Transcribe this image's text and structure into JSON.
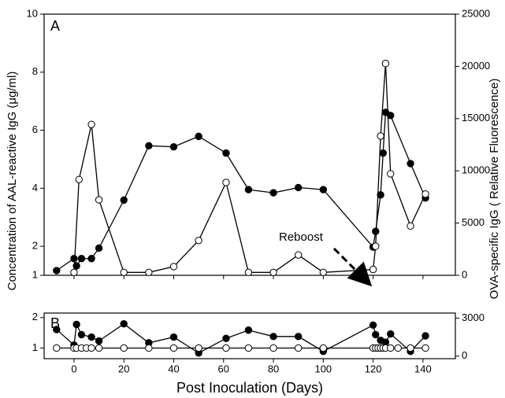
{
  "chart_data": [
    {
      "type": "line",
      "panel_label": "A",
      "ylabel": "Concentration of AAL-reactive IgG (μg/ml)",
      "y2label": "OVA-specific IgG ( Relative Fluorescence)",
      "annotation": "Reboost",
      "xlim": [
        -12,
        153
      ],
      "ylim": [
        1,
        10
      ],
      "yticks": [
        1,
        2,
        4,
        6,
        8,
        10
      ],
      "y2lim": [
        0,
        25000
      ],
      "y2ticks": [
        0,
        5000,
        10000,
        15000,
        20000,
        25000
      ],
      "series": [
        {
          "marker": "open",
          "color": "#000000",
          "axis": "y",
          "x": [
            0,
            2,
            7,
            10,
            20,
            30,
            40,
            50,
            61,
            70,
            80,
            90,
            100,
            120,
            121,
            123,
            125,
            127,
            135,
            141
          ],
          "values": [
            1.1,
            4.3,
            6.2,
            3.6,
            1.1,
            1.1,
            1.3,
            2.2,
            4.2,
            1.1,
            1.1,
            1.7,
            1.1,
            1.2,
            2.0,
            5.8,
            8.3,
            4.5,
            2.7,
            3.8
          ]
        },
        {
          "marker": "filled",
          "color": "#000000",
          "axis": "y2",
          "x": [
            -7,
            0,
            1,
            3,
            7,
            10,
            20,
            30,
            40,
            50,
            61,
            70,
            80,
            90,
            100,
            120,
            121,
            123,
            124,
            125,
            127,
            135,
            141
          ],
          "values": [
            450,
            1600,
            900,
            1600,
            1600,
            2600,
            7200,
            12400,
            12300,
            13300,
            11700,
            8200,
            7900,
            8400,
            8200,
            2700,
            4200,
            7700,
            11700,
            15600,
            15300,
            10700,
            7400
          ]
        }
      ]
    },
    {
      "type": "line",
      "panel_label": "B",
      "xlabel": "Post Inoculation (Days)",
      "xlim": [
        -12,
        153
      ],
      "xticks": [
        0,
        20,
        40,
        60,
        80,
        100,
        120,
        140
      ],
      "ylim": [
        0.65,
        2.15
      ],
      "yticks": [
        1,
        2
      ],
      "y2lim": [
        -200,
        3400
      ],
      "y2ticks": [
        0,
        3000
      ],
      "series": [
        {
          "marker": "open",
          "color": "#000000",
          "axis": "y",
          "x": [
            -7,
            0,
            1,
            3,
            5,
            7,
            10,
            20,
            30,
            40,
            50,
            61,
            70,
            80,
            90,
            100,
            120,
            121,
            122,
            123,
            124,
            125,
            127,
            130,
            135,
            141
          ],
          "values": [
            1,
            1,
            1,
            1,
            1,
            1,
            1,
            1,
            1,
            1,
            1,
            1,
            1,
            1,
            1,
            1,
            1,
            1,
            1,
            1,
            1,
            1,
            1,
            1,
            1,
            1
          ]
        },
        {
          "marker": "filled",
          "color": "#000000",
          "axis": "y2",
          "x": [
            -7,
            0,
            1,
            3,
            7,
            10,
            20,
            30,
            40,
            50,
            61,
            70,
            80,
            90,
            100,
            120,
            121,
            123,
            125,
            127,
            135,
            141
          ],
          "values": [
            2100,
            875,
            2500,
            1700,
            1500,
            1200,
            2550,
            1050,
            1500,
            250,
            1400,
            2050,
            1550,
            1550,
            375,
            2450,
            1700,
            1250,
            1100,
            1750,
            375,
            1600
          ]
        }
      ]
    }
  ]
}
